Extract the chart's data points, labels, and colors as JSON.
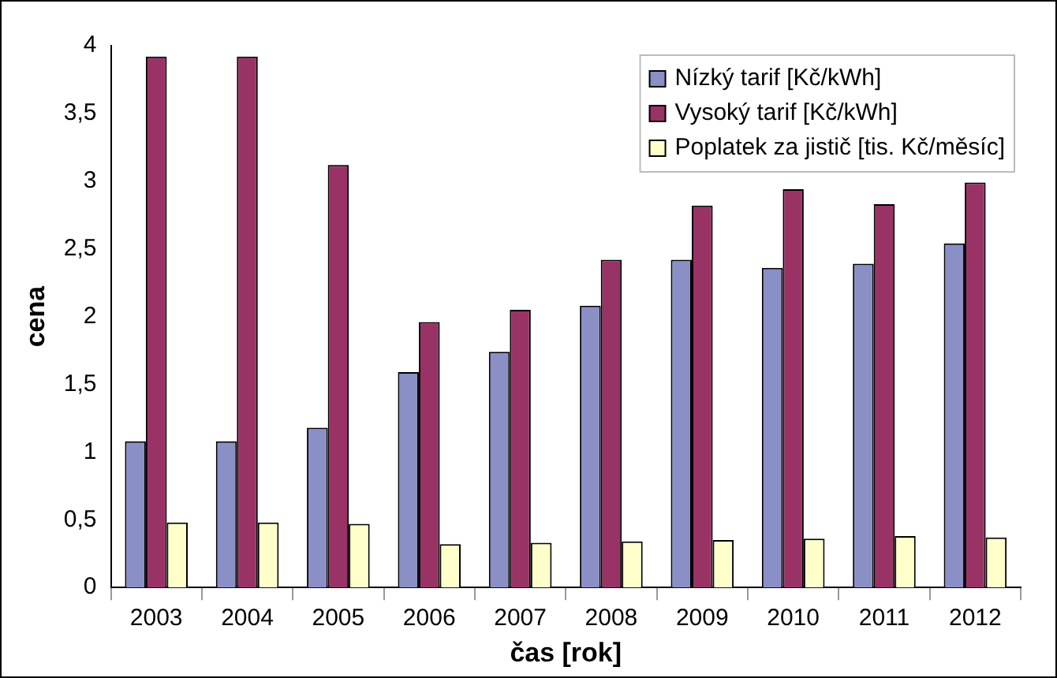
{
  "chart_data": {
    "type": "bar",
    "xlabel": "čas [rok]",
    "ylabel": "cena",
    "categories": [
      "2003",
      "2004",
      "2005",
      "2006",
      "2007",
      "2008",
      "2009",
      "2010",
      "2011",
      "2012"
    ],
    "series": [
      {
        "name": "Nízký tarif [Kč/kWh]",
        "color": "#8a8fc6",
        "values": [
          1.08,
          1.08,
          1.18,
          1.59,
          1.74,
          2.08,
          2.42,
          2.36,
          2.39,
          2.54
        ]
      },
      {
        "name": "Vysoký tarif [Kč/kWh]",
        "color": "#993366",
        "values": [
          3.92,
          3.92,
          3.12,
          1.96,
          2.05,
          2.42,
          2.82,
          2.94,
          2.83,
          2.99
        ]
      },
      {
        "name": "Poplatek za jistič [tis. Kč/měsíc]",
        "color": "#ffffcc",
        "values": [
          0.48,
          0.48,
          0.47,
          0.32,
          0.33,
          0.34,
          0.35,
          0.36,
          0.38,
          0.37
        ]
      }
    ],
    "ylim": [
      0,
      4
    ],
    "yticks": [
      {
        "value": 0,
        "label": "0"
      },
      {
        "value": 0.5,
        "label": "0,5"
      },
      {
        "value": 1,
        "label": "1"
      },
      {
        "value": 1.5,
        "label": "1,5"
      },
      {
        "value": 2,
        "label": "2"
      },
      {
        "value": 2.5,
        "label": "2,5"
      },
      {
        "value": 3,
        "label": "3"
      },
      {
        "value": 3.5,
        "label": "3,5"
      },
      {
        "value": 4,
        "label": "4"
      }
    ],
    "grid": false,
    "legend": "top right"
  }
}
